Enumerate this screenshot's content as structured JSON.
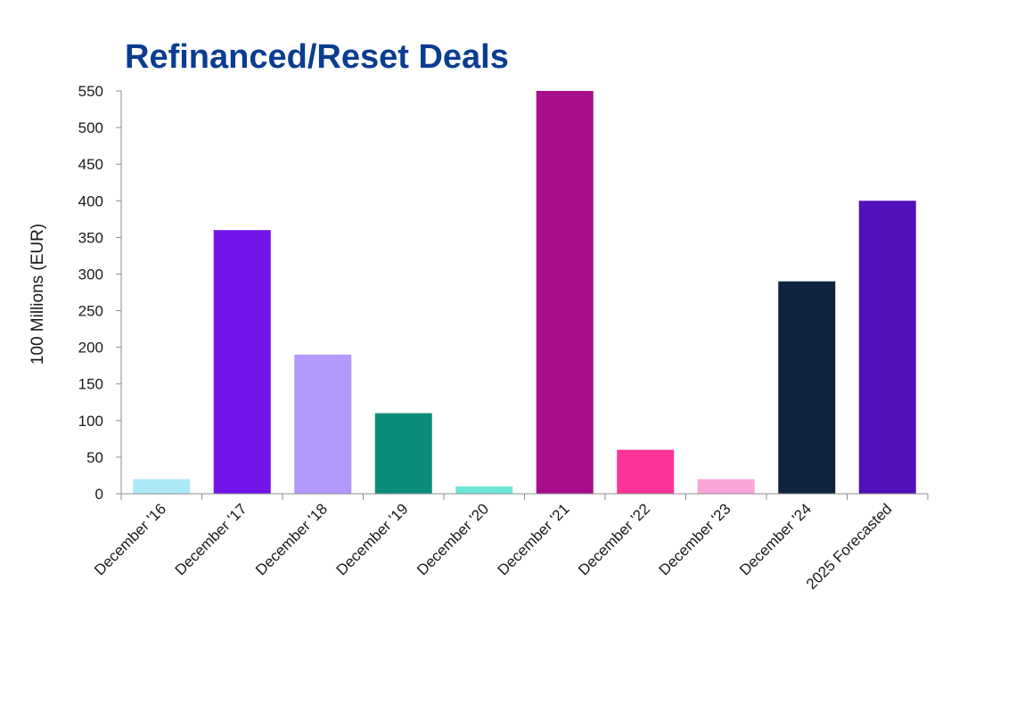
{
  "chart_data": {
    "type": "bar",
    "title": "Refinanced/Reset Deals",
    "xlabel": "",
    "ylabel": "100 Millions (EUR)",
    "ylim": [
      0,
      550
    ],
    "yticks": [
      0,
      50,
      100,
      150,
      200,
      250,
      300,
      350,
      400,
      450,
      500,
      550
    ],
    "grid": false,
    "legend": "none",
    "categories": [
      "December '16",
      "December '17",
      "December '18",
      "December '19",
      "December '20",
      "December '21",
      "December '22",
      "December '23",
      "December '24",
      "2025 Forecasted"
    ],
    "values": [
      20,
      360,
      190,
      110,
      10,
      550,
      60,
      20,
      290,
      400
    ],
    "colors": [
      "#aee9f7",
      "#7314ea",
      "#b399fb",
      "#0b8c7b",
      "#6ee6d8",
      "#a80d8b",
      "#fb3499",
      "#f9a6d9",
      "#0f233e",
      "#520fbb"
    ],
    "title_color": "#0a3d91",
    "axis_color": "#8c8c8c"
  }
}
